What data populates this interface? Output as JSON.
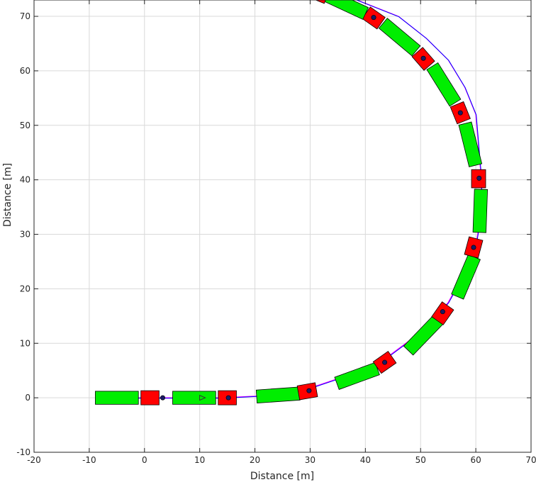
{
  "chart_data": {
    "type": "scatter",
    "title": "",
    "xlabel": "Distance [m]",
    "ylabel": "Distance [m]",
    "xlim": [
      -20,
      70
    ],
    "ylim": [
      -10,
      73
    ],
    "xticks": [
      -20,
      -10,
      0,
      10,
      20,
      30,
      40,
      50,
      60,
      70
    ],
    "yticks": [
      -10,
      0,
      10,
      20,
      30,
      40,
      50,
      60,
      70
    ],
    "grid": true,
    "box": true,
    "colors": {
      "cab": "#ff0000",
      "trailer": "#00ee00",
      "outline": "#000000",
      "path": "#0000ff",
      "reference": "#ff00ff",
      "grid": "#d9d9d9",
      "axis": "#262626"
    },
    "path": {
      "x": [
        -8,
        3,
        5,
        10,
        14,
        20,
        25,
        30,
        35,
        40,
        44,
        48,
        52,
        55,
        58,
        60,
        61,
        61,
        60.5,
        60,
        58,
        55,
        51,
        46,
        41,
        36,
        31
      ],
      "y": [
        0,
        0,
        0,
        0,
        0,
        0.3,
        0.8,
        1.8,
        3.5,
        5,
        7.5,
        10.5,
        14,
        17.5,
        23,
        28,
        34,
        40,
        46,
        52,
        57,
        62,
        66,
        70,
        72,
        74,
        76
      ]
    },
    "vehicles": [
      {
        "cab": {
          "x": 1,
          "y": 0,
          "angle": 0
        },
        "trailer": {
          "x": -5,
          "y": 0,
          "angle": 0
        },
        "marker": {
          "x": 3.3,
          "y": 0
        }
      },
      {
        "cab": {
          "x": 15,
          "y": 0,
          "angle": 0
        },
        "trailer": {
          "x": 9,
          "y": 0,
          "angle": 0
        },
        "marker": {
          "x": 15.2,
          "y": 0
        }
      },
      {
        "cab": {
          "x": 29.5,
          "y": 1.2,
          "angle": 10
        },
        "trailer": {
          "x": 24.2,
          "y": 0.5,
          "angle": 4
        },
        "marker": {
          "x": 29.8,
          "y": 1.3
        }
      },
      {
        "cab": {
          "x": 43.5,
          "y": 6.5,
          "angle": 35
        },
        "trailer": {
          "x": 38.5,
          "y": 4,
          "angle": 20
        },
        "marker": {
          "x": 43.5,
          "y": 6.5
        }
      },
      {
        "cab": {
          "x": 54,
          "y": 15.5,
          "angle": 55
        },
        "trailer": {
          "x": 50.5,
          "y": 11.5,
          "angle": 46
        },
        "marker": {
          "x": 54,
          "y": 15.8
        }
      },
      {
        "cab": {
          "x": 59.6,
          "y": 27.6,
          "angle": 75
        },
        "trailer": {
          "x": 58.2,
          "y": 22.2,
          "angle": 67
        },
        "marker": {
          "x": 59.6,
          "y": 27.6
        }
      },
      {
        "cab": {
          "x": 60.5,
          "y": 40.2,
          "angle": 90
        },
        "trailer": {
          "x": 60.8,
          "y": 34.3,
          "angle": 88
        },
        "marker": {
          "x": 60.6,
          "y": 40.3
        }
      },
      {
        "cab": {
          "x": 57.2,
          "y": 52.3,
          "angle": 112
        },
        "trailer": {
          "x": 59,
          "y": 46.5,
          "angle": 104
        },
        "marker": {
          "x": 57.2,
          "y": 52.3
        }
      },
      {
        "cab": {
          "x": 50.5,
          "y": 62.2,
          "angle": 131
        },
        "trailer": {
          "x": 54.2,
          "y": 57.5,
          "angle": 122
        },
        "marker": {
          "x": 50.5,
          "y": 62.3
        }
      },
      {
        "cab": {
          "x": 41.5,
          "y": 69.7,
          "angle": 145
        },
        "trailer": {
          "x": 46.2,
          "y": 66.2,
          "angle": 140
        },
        "marker": {
          "x": 41.5,
          "y": 69.8
        }
      },
      {
        "cab": {
          "x": 31.5,
          "y": 74.2,
          "angle": 158
        },
        "trailer": {
          "x": 36.5,
          "y": 72.2,
          "angle": 155
        },
        "marker": {
          "x": 31.5,
          "y": 74.2
        }
      }
    ]
  }
}
